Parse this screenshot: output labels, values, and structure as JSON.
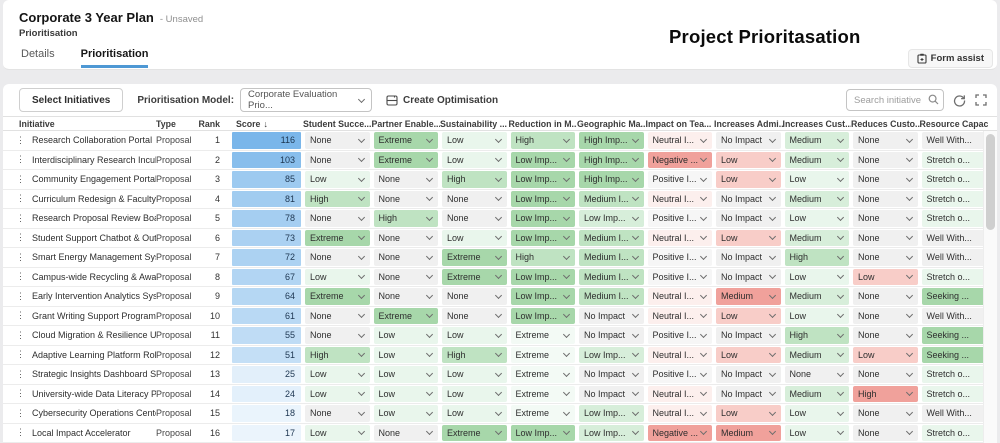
{
  "header": {
    "title": "Corporate 3 Year Plan",
    "status": "- Unsaved",
    "subtitle": "Prioritisation",
    "tabs": [
      {
        "label": "Details"
      },
      {
        "label": "Prioritisation"
      }
    ],
    "overlay_title": "Project Prioritasation",
    "form_assist_label": "Form assist"
  },
  "toolbar": {
    "select_initiatives_label": "Select Initiatives",
    "model_label": "Prioritisation Model:",
    "model_value": "Corporate Evaluation Prio...",
    "create_optimisation_label": "Create Optimisation",
    "search_placeholder": "Search initiative"
  },
  "colors": {
    "accent_blue": "#4e98d4",
    "score_rgb": "77,158,227",
    "classes": {
      "n": "#f0f0f0",
      "w": "#f6f6f6",
      "g1": "#e9f6ec",
      "gx": "#f3faf5",
      "g2": "#d7eeda",
      "g3": "#bfe3c2",
      "g4": "#a7d7aa",
      "p0": "#fcefed",
      "p1": "#f8cdc8",
      "p2": "#f0a19b"
    }
  },
  "table": {
    "fixed_columns": [
      "Initiative",
      "Type",
      "Rank",
      "Score"
    ],
    "score_sort_icon": "↓",
    "value_columns": [
      "Student Succe...",
      "Partner Enable...",
      "Sustainability ...",
      "Reduction in M...",
      "Geographic Ma...",
      "Impact on Tea...",
      "Increases Admi...",
      "Increases Cust...",
      "Reduces Custo...",
      "Resource Capac"
    ],
    "max_score": 116,
    "rows": [
      {
        "name": "Research Collaboration Portal",
        "type": "Proposal",
        "rank": 1,
        "score": 116,
        "cells": [
          {
            "v": "None",
            "c": "n"
          },
          {
            "v": "Extreme",
            "c": "g4"
          },
          {
            "v": "Low",
            "c": "g1"
          },
          {
            "v": "High",
            "c": "g3"
          },
          {
            "v": "High Imp...",
            "c": "g4"
          },
          {
            "v": "Neutral I...",
            "c": "p0"
          },
          {
            "v": "No Impact",
            "c": "n"
          },
          {
            "v": "Medium",
            "c": "g2"
          },
          {
            "v": "None",
            "c": "n"
          },
          {
            "v": "Well With...",
            "c": "n"
          }
        ]
      },
      {
        "name": "Interdisciplinary Research Incubator",
        "type": "Proposal",
        "rank": 2,
        "score": 103,
        "cells": [
          {
            "v": "None",
            "c": "n"
          },
          {
            "v": "Extreme",
            "c": "g4"
          },
          {
            "v": "Low",
            "c": "g1"
          },
          {
            "v": "Low Imp...",
            "c": "g4"
          },
          {
            "v": "High Imp...",
            "c": "g4"
          },
          {
            "v": "Negative ...",
            "c": "p2"
          },
          {
            "v": "Low",
            "c": "p1"
          },
          {
            "v": "Medium",
            "c": "g2"
          },
          {
            "v": "None",
            "c": "n"
          },
          {
            "v": "Stretch o...",
            "c": "g1"
          }
        ]
      },
      {
        "name": "Community Engagement Portal",
        "type": "Proposal",
        "rank": 3,
        "score": 85,
        "cells": [
          {
            "v": "Low",
            "c": "g1"
          },
          {
            "v": "None",
            "c": "n"
          },
          {
            "v": "High",
            "c": "g3"
          },
          {
            "v": "Low Imp...",
            "c": "g4"
          },
          {
            "v": "High Imp...",
            "c": "g4"
          },
          {
            "v": "Positive I...",
            "c": "w"
          },
          {
            "v": "Low",
            "c": "p1"
          },
          {
            "v": "Low",
            "c": "g1"
          },
          {
            "v": "None",
            "c": "n"
          },
          {
            "v": "Stretch o...",
            "c": "g1"
          }
        ]
      },
      {
        "name": "Curriculum Redesign & Faculty Tr...",
        "type": "Proposal",
        "rank": 4,
        "score": 81,
        "cells": [
          {
            "v": "High",
            "c": "g3"
          },
          {
            "v": "None",
            "c": "n"
          },
          {
            "v": "None",
            "c": "n"
          },
          {
            "v": "Low Imp...",
            "c": "g4"
          },
          {
            "v": "Medium I...",
            "c": "g3"
          },
          {
            "v": "Neutral I...",
            "c": "p0"
          },
          {
            "v": "No Impact",
            "c": "n"
          },
          {
            "v": "Medium",
            "c": "g2"
          },
          {
            "v": "None",
            "c": "n"
          },
          {
            "v": "Stretch o...",
            "c": "g1"
          }
        ]
      },
      {
        "name": "Research Proposal Review Board",
        "type": "Proposal",
        "rank": 5,
        "score": 78,
        "cells": [
          {
            "v": "None",
            "c": "n"
          },
          {
            "v": "High",
            "c": "g3"
          },
          {
            "v": "None",
            "c": "n"
          },
          {
            "v": "Low Imp...",
            "c": "g4"
          },
          {
            "v": "Low Imp...",
            "c": "g2"
          },
          {
            "v": "Positive I...",
            "c": "w"
          },
          {
            "v": "No Impact",
            "c": "n"
          },
          {
            "v": "Low",
            "c": "g1"
          },
          {
            "v": "None",
            "c": "n"
          },
          {
            "v": "Stretch o...",
            "c": "g1"
          }
        ]
      },
      {
        "name": "Student Support Chatbot & Outre...",
        "type": "Proposal",
        "rank": 6,
        "score": 73,
        "cells": [
          {
            "v": "Extreme",
            "c": "g4"
          },
          {
            "v": "None",
            "c": "n"
          },
          {
            "v": "Low",
            "c": "g1"
          },
          {
            "v": "Low Imp...",
            "c": "g4"
          },
          {
            "v": "Medium I...",
            "c": "g3"
          },
          {
            "v": "Neutral I...",
            "c": "p0"
          },
          {
            "v": "Low",
            "c": "p1"
          },
          {
            "v": "Medium",
            "c": "g2"
          },
          {
            "v": "None",
            "c": "n"
          },
          {
            "v": "Well With...",
            "c": "n"
          }
        ]
      },
      {
        "name": "Smart Energy Management System",
        "type": "Proposal",
        "rank": 7,
        "score": 72,
        "cells": [
          {
            "v": "None",
            "c": "n"
          },
          {
            "v": "None",
            "c": "n"
          },
          {
            "v": "Extreme",
            "c": "g4"
          },
          {
            "v": "High",
            "c": "g3"
          },
          {
            "v": "Medium I...",
            "c": "g3"
          },
          {
            "v": "Positive I...",
            "c": "w"
          },
          {
            "v": "No Impact",
            "c": "n"
          },
          {
            "v": "High",
            "c": "g3"
          },
          {
            "v": "None",
            "c": "n"
          },
          {
            "v": "Well With...",
            "c": "n"
          }
        ]
      },
      {
        "name": "Campus-wide Recycling & Aware...",
        "type": "Proposal",
        "rank": 8,
        "score": 67,
        "cells": [
          {
            "v": "Low",
            "c": "g1"
          },
          {
            "v": "None",
            "c": "n"
          },
          {
            "v": "Extreme",
            "c": "g4"
          },
          {
            "v": "Low Imp...",
            "c": "g4"
          },
          {
            "v": "Medium I...",
            "c": "g3"
          },
          {
            "v": "Positive I...",
            "c": "w"
          },
          {
            "v": "No Impact",
            "c": "n"
          },
          {
            "v": "Low",
            "c": "g1"
          },
          {
            "v": "Low",
            "c": "p1"
          },
          {
            "v": "Stretch o...",
            "c": "g1"
          }
        ]
      },
      {
        "name": "Early Intervention Analytics System",
        "type": "Proposal",
        "rank": 9,
        "score": 64,
        "cells": [
          {
            "v": "Extreme",
            "c": "g4"
          },
          {
            "v": "None",
            "c": "n"
          },
          {
            "v": "None",
            "c": "n"
          },
          {
            "v": "Low Imp...",
            "c": "g4"
          },
          {
            "v": "Medium I...",
            "c": "g3"
          },
          {
            "v": "Neutral I...",
            "c": "p0"
          },
          {
            "v": "Medium",
            "c": "p2"
          },
          {
            "v": "Medium",
            "c": "g2"
          },
          {
            "v": "None",
            "c": "n"
          },
          {
            "v": "Seeking ...",
            "c": "g4"
          }
        ]
      },
      {
        "name": "Grant Writing Support Program",
        "type": "Proposal",
        "rank": 10,
        "score": 61,
        "cells": [
          {
            "v": "None",
            "c": "n"
          },
          {
            "v": "Extreme",
            "c": "g4"
          },
          {
            "v": "None",
            "c": "n"
          },
          {
            "v": "Low Imp...",
            "c": "g4"
          },
          {
            "v": "No Impact",
            "c": "n"
          },
          {
            "v": "Neutral I...",
            "c": "p0"
          },
          {
            "v": "Low",
            "c": "p1"
          },
          {
            "v": "Low",
            "c": "g1"
          },
          {
            "v": "None",
            "c": "n"
          },
          {
            "v": "Well With...",
            "c": "n"
          }
        ]
      },
      {
        "name": "Cloud Migration & Resilience Up...",
        "type": "Proposal",
        "rank": 11,
        "score": 55,
        "cells": [
          {
            "v": "None",
            "c": "n"
          },
          {
            "v": "Low",
            "c": "g1"
          },
          {
            "v": "Low",
            "c": "g1"
          },
          {
            "v": "Extreme",
            "c": "gx"
          },
          {
            "v": "No Impact",
            "c": "n"
          },
          {
            "v": "Positive I...",
            "c": "w"
          },
          {
            "v": "No Impact",
            "c": "n"
          },
          {
            "v": "High",
            "c": "g3"
          },
          {
            "v": "None",
            "c": "n"
          },
          {
            "v": "Seeking ...",
            "c": "g4"
          }
        ]
      },
      {
        "name": "Adaptive Learning Platform Rollout",
        "type": "Proposal",
        "rank": 12,
        "score": 51,
        "cells": [
          {
            "v": "High",
            "c": "g3"
          },
          {
            "v": "Low",
            "c": "g1"
          },
          {
            "v": "High",
            "c": "g3"
          },
          {
            "v": "Extreme",
            "c": "gx"
          },
          {
            "v": "Low Imp...",
            "c": "g2"
          },
          {
            "v": "Neutral I...",
            "c": "p0"
          },
          {
            "v": "Low",
            "c": "p1"
          },
          {
            "v": "Medium",
            "c": "g2"
          },
          {
            "v": "Low",
            "c": "p1"
          },
          {
            "v": "Seeking ...",
            "c": "g4"
          }
        ]
      },
      {
        "name": "Strategic Insights Dashboard Suite",
        "type": "Proposal",
        "rank": 13,
        "score": 25,
        "cells": [
          {
            "v": "Low",
            "c": "g1"
          },
          {
            "v": "Low",
            "c": "g1"
          },
          {
            "v": "Low",
            "c": "g1"
          },
          {
            "v": "Extreme",
            "c": "gx"
          },
          {
            "v": "No Impact",
            "c": "n"
          },
          {
            "v": "Positive I...",
            "c": "w"
          },
          {
            "v": "No Impact",
            "c": "n"
          },
          {
            "v": "None",
            "c": "n"
          },
          {
            "v": "None",
            "c": "n"
          },
          {
            "v": "Stretch o...",
            "c": "g1"
          }
        ]
      },
      {
        "name": "University-wide Data Literacy Pro...",
        "type": "Proposal",
        "rank": 14,
        "score": 24,
        "cells": [
          {
            "v": "Low",
            "c": "g1"
          },
          {
            "v": "Low",
            "c": "g1"
          },
          {
            "v": "Low",
            "c": "g1"
          },
          {
            "v": "Extreme",
            "c": "gx"
          },
          {
            "v": "No Impact",
            "c": "n"
          },
          {
            "v": "Neutral I...",
            "c": "p0"
          },
          {
            "v": "No Impact",
            "c": "n"
          },
          {
            "v": "Medium",
            "c": "g2"
          },
          {
            "v": "High",
            "c": "p2"
          },
          {
            "v": "Stretch o...",
            "c": "g1"
          }
        ]
      },
      {
        "name": "Cybersecurity Operations Center",
        "type": "Proposal",
        "rank": 15,
        "score": 18,
        "cells": [
          {
            "v": "None",
            "c": "n"
          },
          {
            "v": "Low",
            "c": "g1"
          },
          {
            "v": "Low",
            "c": "g1"
          },
          {
            "v": "Extreme",
            "c": "gx"
          },
          {
            "v": "Low Imp...",
            "c": "g2"
          },
          {
            "v": "Neutral I...",
            "c": "p0"
          },
          {
            "v": "Low",
            "c": "p1"
          },
          {
            "v": "Low",
            "c": "g1"
          },
          {
            "v": "None",
            "c": "n"
          },
          {
            "v": "Well With...",
            "c": "n"
          }
        ]
      },
      {
        "name": "Local Impact Accelerator",
        "type": "Proposal",
        "rank": 16,
        "score": 17,
        "cells": [
          {
            "v": "Low",
            "c": "g1"
          },
          {
            "v": "None",
            "c": "n"
          },
          {
            "v": "Extreme",
            "c": "g4"
          },
          {
            "v": "Low Imp...",
            "c": "g4"
          },
          {
            "v": "Low Imp...",
            "c": "g2"
          },
          {
            "v": "Negative ...",
            "c": "p2"
          },
          {
            "v": "Medium",
            "c": "p2"
          },
          {
            "v": "Low",
            "c": "g1"
          },
          {
            "v": "None",
            "c": "n"
          },
          {
            "v": "Stretch o...",
            "c": "g1"
          }
        ]
      }
    ]
  }
}
